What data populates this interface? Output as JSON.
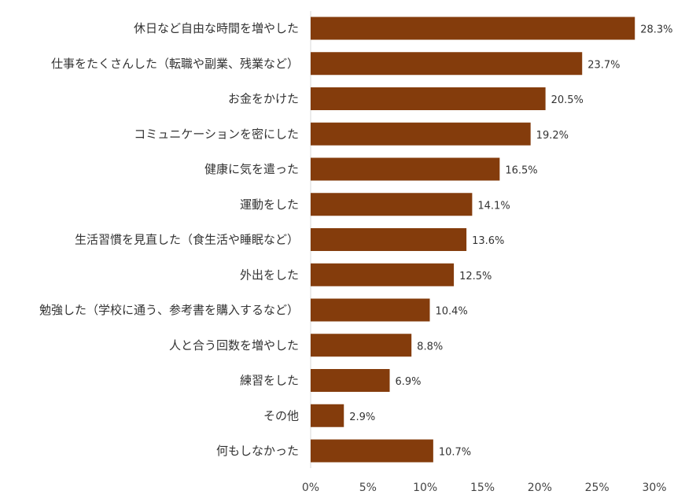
{
  "chart_data": {
    "type": "bar",
    "orientation": "horizontal",
    "title": "",
    "xlabel": "",
    "ylabel": "",
    "categories": [
      "休日など自由な時間を増やした",
      "仕事をたくさんした（転職や副業、残業など）",
      "お金をかけた",
      "コミュニケーションを密にした",
      "健康に気を遣った",
      "運動をした",
      "生活習慣を見直した（食生活や睡眠など）",
      "外出をした",
      "勉強した（学校に通う、参考書を購入するなど）",
      "人と合う回数を増やした",
      "練習をした",
      "その他",
      "何もしなかった"
    ],
    "values": [
      28.3,
      23.7,
      20.5,
      19.2,
      16.5,
      14.1,
      13.6,
      12.5,
      10.4,
      8.8,
      6.9,
      2.9,
      10.7
    ],
    "value_labels": [
      "28.3%",
      "23.7%",
      "20.5%",
      "19.2%",
      "16.5%",
      "14.1%",
      "13.6%",
      "12.5%",
      "10.4%",
      "8.8%",
      "6.9%",
      "2.9%",
      "10.7%"
    ],
    "xlim": [
      0,
      30
    ],
    "xticks": [
      0,
      5,
      10,
      15,
      20,
      25,
      30
    ],
    "xtick_labels": [
      "0%",
      "5%",
      "10%",
      "15%",
      "20%",
      "25%",
      "30%"
    ],
    "grid": false,
    "legend": "none",
    "colors": {
      "bar": "#843C0C",
      "axis": "#d9d9d9",
      "text": "#333333"
    }
  }
}
